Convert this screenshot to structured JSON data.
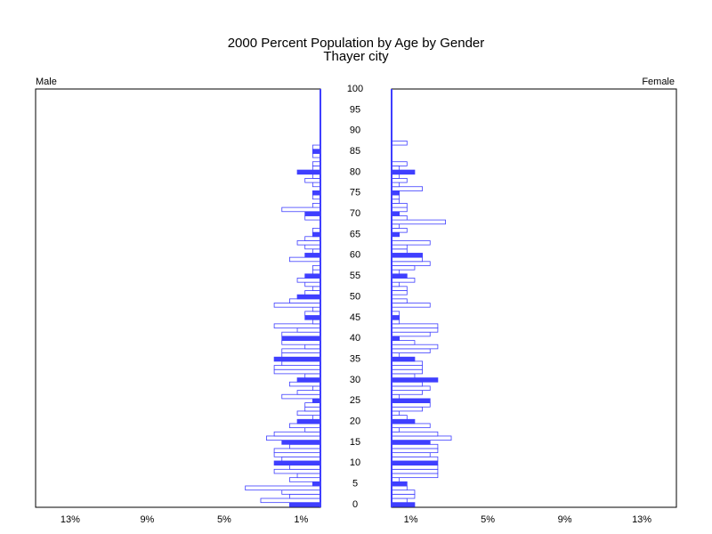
{
  "chart_data": {
    "type": "population_pyramid",
    "title": "2000 Percent Population by Age by Gender",
    "subtitle": "Thayer city",
    "categories": [
      0,
      null,
      null,
      null,
      null,
      5,
      null,
      null,
      null,
      null,
      10,
      null,
      null,
      null,
      null,
      15,
      null,
      null,
      null,
      null,
      20,
      null,
      null,
      null,
      null,
      25,
      null,
      null,
      null,
      null,
      30,
      null,
      null,
      null,
      null,
      35,
      null,
      null,
      null,
      null,
      40,
      null,
      null,
      null,
      null,
      45,
      null,
      null,
      null,
      null,
      50,
      null,
      null,
      null,
      null,
      55,
      null,
      null,
      null,
      null,
      60,
      null,
      null,
      null,
      null,
      65,
      null,
      null,
      null,
      null,
      70,
      null,
      null,
      null,
      null,
      75,
      null,
      null,
      null,
      null,
      80,
      null,
      null,
      null,
      null,
      85,
      null,
      null,
      null,
      null,
      90,
      null,
      null,
      null,
      null,
      95,
      null,
      null,
      null,
      null,
      100
    ],
    "series": [
      {
        "name": "Male",
        "color": "#3f3fff",
        "values": [
          1.6,
          3.1,
          1.6,
          2.0,
          3.9,
          0.4,
          1.6,
          1.2,
          2.4,
          1.6,
          2.4,
          2.0,
          2.4,
          2.4,
          1.6,
          2.0,
          2.8,
          2.4,
          0.8,
          1.6,
          1.2,
          0.4,
          1.2,
          0.8,
          0.8,
          0.4,
          2.0,
          1.2,
          0.4,
          1.6,
          1.2,
          0.8,
          2.4,
          2.4,
          2.0,
          2.4,
          2.0,
          2.0,
          0.8,
          2.0,
          2.0,
          2.0,
          1.2,
          2.4,
          0.4,
          0.8,
          0.8,
          0.4,
          2.4,
          1.6,
          1.2,
          0.8,
          0.4,
          0.8,
          1.2,
          0.8,
          0.4,
          0.4,
          0,
          1.6,
          0.8,
          0.4,
          0.8,
          1.2,
          0.8,
          0.4,
          0.4,
          0,
          0,
          0.8,
          0.8,
          2.0,
          0.4,
          0,
          0.4,
          0.4,
          0,
          0.4,
          0.8,
          0.4,
          1.2,
          0.4,
          0.4,
          0,
          0.4,
          0.4,
          0.4,
          0,
          0,
          0,
          0,
          0,
          0,
          0,
          0,
          0,
          0,
          0,
          0,
          0,
          0
        ]
      },
      {
        "name": "Female",
        "color": "#3f3fff",
        "values": [
          1.2,
          0.8,
          1.2,
          1.2,
          0.8,
          0.8,
          0.4,
          2.4,
          2.4,
          2.4,
          2.4,
          2.4,
          2.0,
          2.4,
          2.4,
          2.0,
          3.1,
          2.4,
          0.4,
          2.0,
          1.2,
          0.8,
          0.4,
          1.6,
          2.0,
          2.0,
          0.4,
          1.6,
          2.0,
          1.6,
          2.4,
          1.2,
          1.6,
          1.6,
          1.6,
          1.2,
          0.4,
          2.0,
          2.4,
          1.2,
          0.4,
          2.0,
          2.4,
          2.4,
          0.4,
          0.4,
          0.4,
          0,
          2.0,
          0.8,
          0,
          0.8,
          0.8,
          0.4,
          1.2,
          0.8,
          0.4,
          1.2,
          2.0,
          1.6,
          1.6,
          0.8,
          0.8,
          2.0,
          0,
          0.4,
          0.8,
          0.4,
          2.8,
          0.8,
          0.4,
          0.8,
          0.8,
          0.4,
          0.4,
          0.4,
          1.6,
          0.4,
          0.8,
          0.4,
          1.2,
          0.4,
          0.8,
          0,
          0,
          0,
          0,
          0.8,
          0,
          0,
          0,
          0,
          0,
          0,
          0,
          0,
          0,
          0,
          0,
          0,
          0
        ]
      }
    ],
    "highlight_interval": 5,
    "xlim": [
      0,
      14.8
    ],
    "xticks": [
      {
        "value": 1,
        "label": "1%"
      },
      {
        "value": 5,
        "label": "5%"
      },
      {
        "value": 9,
        "label": "9%"
      },
      {
        "value": 13,
        "label": "13%"
      }
    ]
  }
}
